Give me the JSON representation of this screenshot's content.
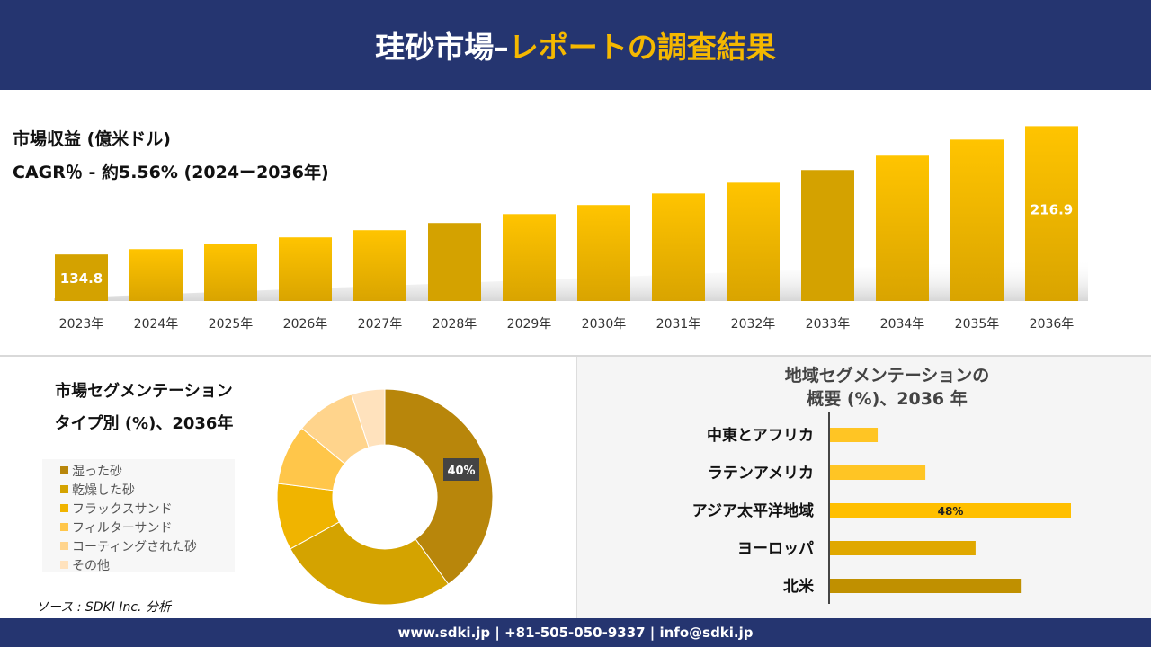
{
  "header": {
    "title_white": "珪砂市場–",
    "title_yellow": "レポートの調査結果"
  },
  "colors": {
    "navy": "#253570",
    "accent": "#f5b800"
  },
  "revenue": {
    "label": "市場収益 (億米ドル)",
    "cagr": "CAGR％ - 約5.56% (2024ー2036年)"
  },
  "chart_data": [
    {
      "type": "bar",
      "categories": [
        "2023年",
        "2024年",
        "2025年",
        "2026年",
        "2027年",
        "2028年",
        "2029年",
        "2030年",
        "2031年",
        "2032年",
        "2033年",
        "2034年",
        "2035年",
        "2036年"
      ],
      "values": [
        134.8,
        138.2,
        141.7,
        145.7,
        150.3,
        154.9,
        160.6,
        166.4,
        173.8,
        180.7,
        188.8,
        198.0,
        208.3,
        216.9
      ],
      "data_labels": {
        "0": "134.8",
        "13": "216.9"
      },
      "ylim": [
        105,
        220
      ],
      "grid": false
    },
    {
      "type": "pie",
      "title": "市場セグメンテーション タイプ別 (%)、2036年",
      "title_line1": "市場セグメンテーション",
      "title_line2": "タイプ別 (%)、2036年",
      "categories": [
        "湿った砂",
        "乾燥した砂",
        "フラックスサンド",
        "フィルターサンド",
        "コーティングされた砂",
        "その他"
      ],
      "values": [
        40,
        27,
        10,
        9,
        9,
        5
      ],
      "colors": [
        "#b8860b",
        "#d4a300",
        "#f0b400",
        "#ffc64a",
        "#ffd48c",
        "#ffe2bd"
      ],
      "data_label": "40%",
      "legend": "left"
    },
    {
      "type": "bar",
      "orientation": "horizontal",
      "title_line1": "地域セグメンテーションの",
      "title_line2": "概要 (%)、2036 年",
      "categories": [
        "中東とアフリカ",
        "ラテンアメリカ",
        "アジア太平洋地域",
        "ヨーロッパ",
        "北米"
      ],
      "values": [
        9.5,
        19,
        48,
        29,
        38
      ],
      "colors": [
        "#ffc524",
        "#ffc524",
        "#ffbf00",
        "#e0a800",
        "#c09000"
      ],
      "data_label": "48%"
    }
  ],
  "source": "ソース : SDKI Inc. 分析",
  "footer": "www.sdki.jp | +81-505-050-9337 | info@sdki.jp"
}
